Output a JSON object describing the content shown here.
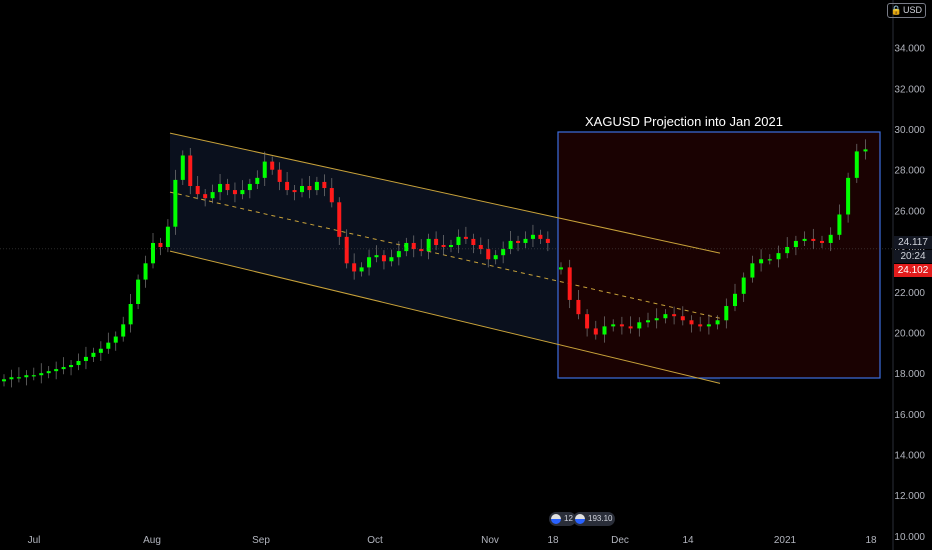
{
  "currency_label": "USD",
  "annotation": {
    "title": "XAGUSD Projection into Jan 2021"
  },
  "price_tags": {
    "last": "24.117",
    "countdown": "20:24",
    "current": "24.102"
  },
  "events": [
    {
      "label": "12"
    },
    {
      "label": "193.10"
    }
  ],
  "colors": {
    "up": "#00ff00",
    "down": "#ff1a1a",
    "channel": "#c8a23a",
    "box": "#3d6fe0",
    "tag": "#e31c1c"
  },
  "chart_data": {
    "type": "candlestick",
    "title": "",
    "ylim": [
      9.8,
      35.9
    ],
    "y_ticks": [
      "10.000",
      "12.000",
      "14.000",
      "16.000",
      "18.000",
      "20.000",
      "22.000",
      "24.000",
      "26.000",
      "28.000",
      "30.000",
      "32.000",
      "34.000"
    ],
    "y_tick_values": [
      10,
      12,
      14,
      16,
      18,
      20,
      22,
      24,
      26,
      28,
      30,
      32,
      34
    ],
    "x_ticks": [
      "Jul",
      "Aug",
      "Sep",
      "Oct",
      "Nov",
      "18",
      "Dec",
      "14",
      "2021",
      "18"
    ],
    "series": [
      {
        "role": "historical",
        "close": [
          17.7,
          17.8,
          17.8,
          17.9,
          17.9,
          18.0,
          18.1,
          18.2,
          18.3,
          18.4,
          18.6,
          18.8,
          19.0,
          19.2,
          19.5,
          19.8,
          20.4,
          21.4,
          22.6,
          23.4,
          24.4,
          24.2,
          25.2,
          27.5,
          28.7,
          27.2,
          26.8,
          26.6,
          26.9,
          27.3,
          27.0,
          26.8,
          27.0,
          27.3,
          27.6,
          28.4,
          28.0,
          27.4,
          27.0,
          26.9,
          27.2,
          27.0,
          27.4,
          27.1,
          26.4,
          24.7,
          23.4,
          23.0,
          23.2,
          23.7,
          23.8,
          23.5,
          23.7,
          24.0,
          24.4,
          24.1,
          24.0,
          24.6,
          24.3,
          24.2,
          24.3,
          24.7,
          24.6,
          24.3,
          24.1,
          23.6,
          23.8,
          24.1,
          24.5,
          24.4,
          24.6,
          24.8,
          24.6,
          24.4
        ]
      },
      {
        "role": "projection",
        "close": [
          23.2,
          21.6,
          20.9,
          20.2,
          19.9,
          20.3,
          20.4,
          20.3,
          20.2,
          20.5,
          20.6,
          20.7,
          20.9,
          20.8,
          20.6,
          20.4,
          20.3,
          20.4,
          20.6,
          21.3,
          21.9,
          22.7,
          23.4,
          23.6,
          23.6,
          23.9,
          24.2,
          24.5,
          24.6,
          24.5,
          24.4,
          24.8,
          25.8,
          27.6,
          28.9,
          29.0
        ]
      }
    ]
  }
}
